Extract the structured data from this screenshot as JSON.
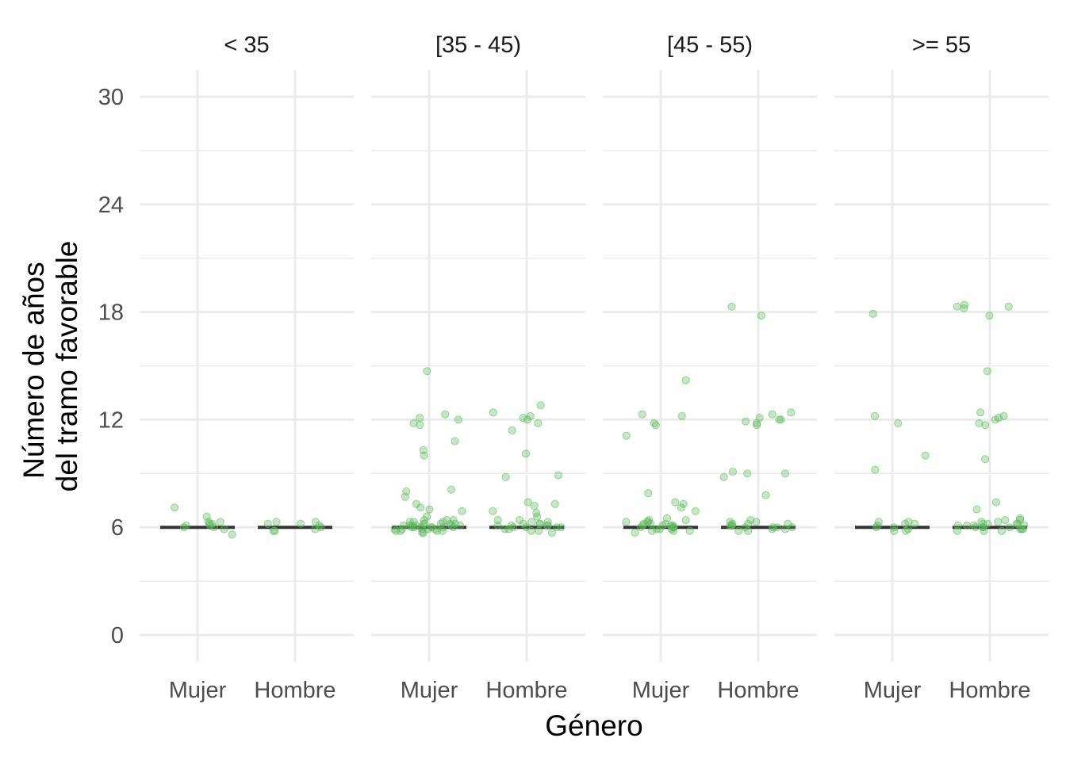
{
  "chart_data": {
    "type": "scatter",
    "subtype": "faceted jitter plot with median line",
    "xlabel": "Género",
    "ylabel": [
      "Número de años",
      "del tramo favorable"
    ],
    "ylim": [
      -1,
      31
    ],
    "yticks": [
      0,
      6,
      12,
      18,
      24,
      30
    ],
    "categories": [
      "Mujer",
      "Hombre"
    ],
    "grid": true,
    "point_color": "#5cb85c",
    "median_color": "#333333",
    "facets": [
      {
        "label": "< 35",
        "groups": [
          {
            "name": "Mujer",
            "median": 6,
            "values": [
              6.3,
              6.0,
              6.6,
              5.6,
              6.1,
              6.2,
              7.1,
              5.9,
              6.2,
              6.3,
              6.0,
              6.1
            ]
          },
          {
            "name": "Hombre",
            "median": 6,
            "values": [
              6.3,
              5.8,
              6.2,
              6.3,
              5.8,
              5.9,
              6.0,
              6.1,
              6.2
            ]
          }
        ]
      },
      {
        "label": "[35 - 45)",
        "groups": [
          {
            "name": "Mujer",
            "median": 6,
            "values": [
              14.7,
              12.3,
              12.1,
              11.8,
              11.7,
              12.0,
              10.8,
              10.3,
              10.0,
              8.1,
              8.0,
              7.7,
              7.3,
              7.1,
              7.0,
              6.9,
              6.6,
              6.4,
              6.3,
              6.2,
              6.2,
              6.1,
              6.1,
              6.0,
              6.0,
              6.0,
              5.9,
              5.9,
              5.8,
              5.8,
              5.7,
              6.3,
              6.1,
              6.0,
              5.9,
              6.2,
              6.1,
              6.4,
              5.8,
              6.0,
              6.1,
              6.2,
              5.9,
              6.0,
              6.3,
              5.7,
              6.1,
              6.2,
              5.9,
              6.0,
              6.4,
              5.8
            ]
          },
          {
            "name": "Hombre",
            "median": 6,
            "values": [
              12.8,
              12.4,
              12.2,
              12.1,
              12.0,
              11.8,
              11.4,
              10.1,
              8.9,
              8.8,
              7.4,
              7.3,
              7.2,
              6.9,
              6.8,
              6.6,
              6.4,
              6.3,
              6.2,
              6.1,
              6.1,
              6.0,
              6.0,
              5.9,
              5.8,
              5.8,
              5.7,
              6.3,
              6.2,
              6.1,
              6.0,
              6.4,
              5.9,
              6.2,
              6.1,
              6.0
            ]
          }
        ]
      },
      {
        "label": "[45 - 55)",
        "groups": [
          {
            "name": "Mujer",
            "median": 6,
            "values": [
              14.2,
              12.3,
              12.2,
              11.8,
              11.7,
              11.1,
              7.9,
              7.4,
              7.3,
              7.1,
              6.9,
              6.5,
              6.4,
              6.3,
              6.3,
              6.2,
              6.1,
              6.1,
              6.0,
              6.0,
              5.9,
              5.9,
              5.8,
              5.8,
              5.7,
              6.2,
              6.0,
              6.1,
              5.9,
              6.3,
              6.0,
              6.2,
              5.8,
              6.1,
              6.4
            ]
          },
          {
            "name": "Hombre",
            "median": 6,
            "values": [
              18.3,
              17.8,
              12.4,
              12.3,
              12.1,
              12.0,
              12.0,
              11.9,
              11.8,
              11.7,
              9.1,
              9.0,
              9.0,
              8.8,
              7.8,
              6.4,
              6.3,
              6.2,
              6.1,
              6.1,
              6.0,
              6.0,
              5.9,
              5.8,
              5.8,
              6.3,
              6.2,
              6.0,
              6.1,
              5.9,
              6.2,
              6.0
            ]
          }
        ]
      },
      {
        "label": ">= 55",
        "groups": [
          {
            "name": "Mujer",
            "median": 6,
            "values": [
              17.9,
              12.2,
              11.8,
              10.0,
              9.2,
              6.3,
              6.3,
              6.2,
              6.1,
              6.0,
              5.9,
              5.8,
              5.8,
              6.2,
              6.0
            ]
          },
          {
            "name": "Hombre",
            "median": 6,
            "values": [
              18.4,
              18.3,
              18.3,
              18.2,
              17.8,
              14.7,
              12.4,
              12.2,
              12.1,
              12.0,
              11.8,
              11.7,
              9.8,
              7.4,
              7.0,
              6.5,
              6.4,
              6.3,
              6.2,
              6.2,
              6.1,
              6.1,
              6.0,
              6.0,
              5.9,
              5.9,
              5.8,
              5.8,
              6.3,
              6.1,
              6.2,
              6.0,
              5.9,
              6.4,
              6.1,
              6.0,
              6.2,
              5.8
            ]
          }
        ]
      }
    ]
  }
}
